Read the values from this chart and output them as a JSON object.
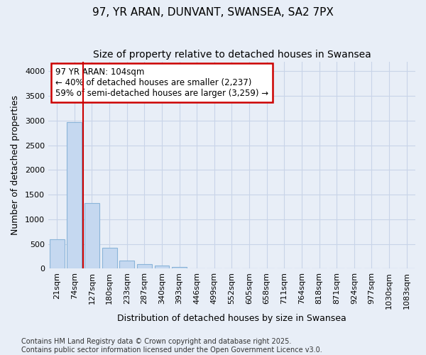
{
  "title1": "97, YR ARAN, DUNVANT, SWANSEA, SA2 7PX",
  "title2": "Size of property relative to detached houses in Swansea",
  "xlabel": "Distribution of detached houses by size in Swansea",
  "ylabel": "Number of detached properties",
  "categories": [
    "21sqm",
    "74sqm",
    "127sqm",
    "180sqm",
    "233sqm",
    "287sqm",
    "340sqm",
    "393sqm",
    "446sqm",
    "499sqm",
    "552sqm",
    "605sqm",
    "658sqm",
    "711sqm",
    "764sqm",
    "818sqm",
    "871sqm",
    "924sqm",
    "977sqm",
    "1030sqm",
    "1083sqm"
  ],
  "values": [
    590,
    2970,
    1330,
    420,
    165,
    85,
    55,
    40,
    0,
    0,
    0,
    0,
    0,
    0,
    0,
    0,
    0,
    0,
    0,
    0,
    0
  ],
  "bar_color": "#c5d8f0",
  "bar_edge_color": "#8ab4d9",
  "vline_x": 1.5,
  "vline_color": "#cc0000",
  "annotation_text": "97 YR ARAN: 104sqm\n← 40% of detached houses are smaller (2,237)\n59% of semi-detached houses are larger (3,259) →",
  "annotation_box_color": "#ffffff",
  "annotation_border_color": "#cc0000",
  "ylim": [
    0,
    4200
  ],
  "yticks": [
    0,
    500,
    1000,
    1500,
    2000,
    2500,
    3000,
    3500,
    4000
  ],
  "bg_color": "#e8eef7",
  "plot_bg_color": "#e8eef7",
  "grid_color": "#c8d4e8",
  "footer": "Contains HM Land Registry data © Crown copyright and database right 2025.\nContains public sector information licensed under the Open Government Licence v3.0.",
  "title1_fontsize": 11,
  "title2_fontsize": 10,
  "label_fontsize": 9,
  "tick_fontsize": 8,
  "footer_fontsize": 7,
  "annotation_fontsize": 8.5
}
